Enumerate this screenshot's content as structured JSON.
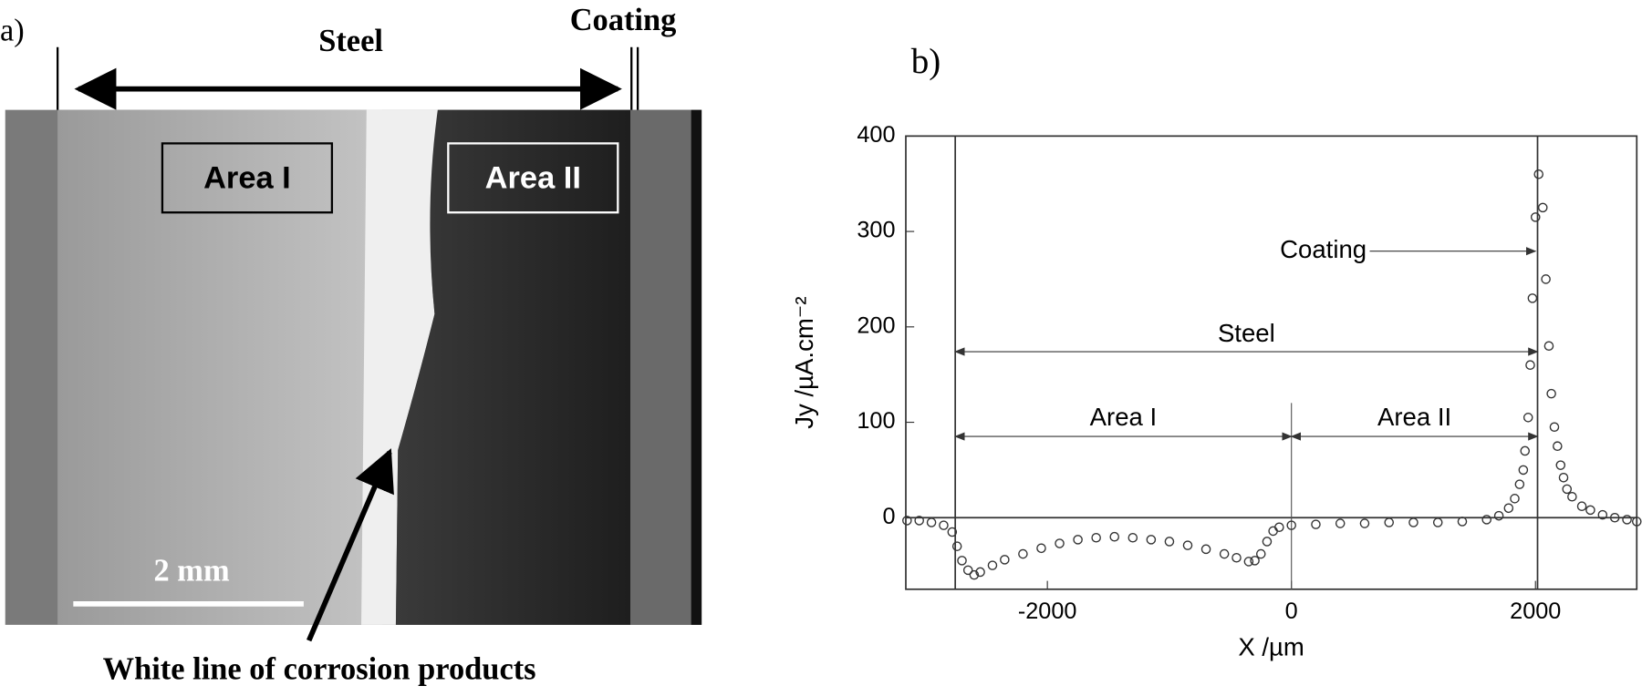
{
  "panel_a": {
    "label": "a)",
    "steel": "Steel",
    "coating": "Coating",
    "area_1": "Area I",
    "area_2": "Area II",
    "scale": "2 mm",
    "caption": "White line of corrosion products"
  },
  "chart_data": {
    "type": "scatter",
    "panel_label": "b)",
    "xlabel": "X /µm",
    "ylabel": "Jy /µA.cm⁻²",
    "xlim": [
      -3160,
      2830
    ],
    "ylim": [
      -75,
      400
    ],
    "xticks": [
      -2000,
      0,
      2000
    ],
    "yticks": [
      0,
      100,
      200,
      300,
      400
    ],
    "annotations": {
      "coating": "Coating",
      "steel": "Steel",
      "area_1": "Area I",
      "area_2": "Area II"
    },
    "series": [
      {
        "color": "#333333",
        "x": [
          -3150,
          -3050,
          -2950,
          -2850,
          -2780,
          -2740,
          -2700,
          -2650,
          -2600,
          -2550,
          -2450,
          -2350,
          -2200,
          -2050,
          -1900,
          -1750,
          -1600,
          -1450,
          -1300,
          -1150,
          -1000,
          -850,
          -700,
          -550,
          -450,
          -350,
          -300,
          -250,
          -200,
          -150,
          -100,
          0,
          200,
          400,
          600,
          800,
          1000,
          1200,
          1400,
          1600,
          1700,
          1780,
          1830,
          1870,
          1900,
          1914,
          1940,
          1957,
          1975,
          2000,
          2026,
          2060,
          2085,
          2110,
          2130,
          2155,
          2180,
          2206,
          2230,
          2258,
          2300,
          2380,
          2450,
          2550,
          2650,
          2750,
          2830
        ],
        "values": [
          -3,
          -3,
          -5,
          -8,
          -15,
          -30,
          -45,
          -55,
          -60,
          -57,
          -50,
          -44,
          -38,
          -32,
          -27,
          -23,
          -21,
          -20,
          -21,
          -23,
          -25,
          -29,
          -33,
          -38,
          -42,
          -46,
          -45,
          -38,
          -25,
          -14,
          -10,
          -8,
          -7,
          -6,
          -6,
          -5,
          -5,
          -5,
          -4,
          -2,
          2,
          10,
          20,
          35,
          50,
          70,
          105,
          160,
          230,
          315,
          360,
          325,
          250,
          180,
          130,
          95,
          75,
          55,
          42,
          30,
          22,
          12,
          8,
          3,
          0,
          -2,
          -4
        ]
      }
    ]
  }
}
